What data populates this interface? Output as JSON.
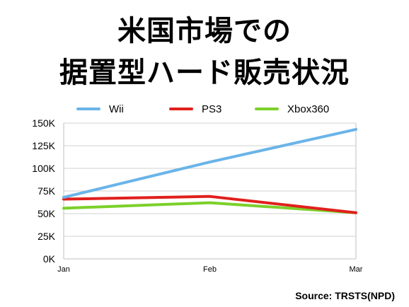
{
  "title_lines": [
    "米国市場での",
    "据置型ハード販売状況"
  ],
  "source": "Source: TRSTS(NPD)",
  "chart_data": {
    "type": "line",
    "categories": [
      "Jan",
      "Feb",
      "Mar"
    ],
    "series": [
      {
        "name": "Wii",
        "values": [
          68000,
          107000,
          143000
        ],
        "color": "#6ab4e8"
      },
      {
        "name": "PS3",
        "values": [
          66000,
          69000,
          51000
        ],
        "color": "#e0201c"
      },
      {
        "name": "Xbox360",
        "values": [
          56000,
          62000,
          51000
        ],
        "color": "#7bd02a"
      }
    ],
    "yticks": [
      "0K",
      "25K",
      "50K",
      "75K",
      "100K",
      "125K",
      "150K"
    ],
    "ylim": [
      0,
      150000
    ],
    "grid": true,
    "legend": "top"
  }
}
